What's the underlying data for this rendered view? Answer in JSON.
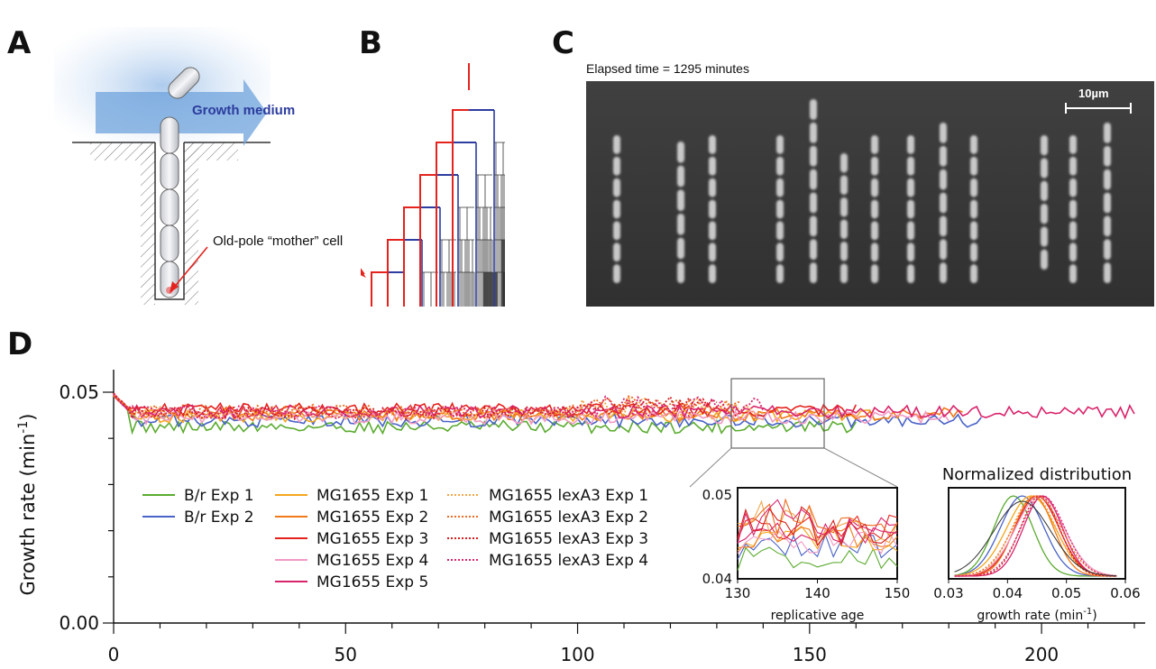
{
  "panels": {
    "a": "A",
    "b": "B",
    "c": "C",
    "d": "D"
  },
  "panel_a": {
    "growth_label": "Growth medium",
    "mother_label": "Old-pole “mother” cell"
  },
  "panel_c": {
    "elapsed": "Elapsed time = 1295 minutes",
    "scale": "10µm"
  },
  "colors": {
    "br1": "#5aab2e",
    "br2": "#4a63c8",
    "mg1": "#f4a71d",
    "mg2": "#f07a1a",
    "mg3": "#e4231e",
    "mg4": "#f29ac4",
    "mg5": "#d9236b",
    "lex1": "#f3a64a",
    "lex2": "#ec6b20",
    "lex3": "#d51e1e",
    "lex4": "#d8276f"
  },
  "chart_data": [
    {
      "type": "line",
      "xlim": [
        0,
        220
      ],
      "ylim": [
        0,
        0.05
      ],
      "ylabel": "Growth rate (min",
      "ylabel_sup": "-1",
      "ylabel_close": ")",
      "xticks": [
        "0",
        "50",
        "100",
        "150",
        "200"
      ],
      "yticks": [
        "0.00",
        "0.05"
      ],
      "series": [
        {
          "name": "B/r Exp 1",
          "color": "#5aab2e",
          "style": "solid",
          "base": 0.0425,
          "end": 160
        },
        {
          "name": "B/r Exp 2",
          "color": "#4a63c8",
          "style": "solid",
          "base": 0.0438,
          "end": 187
        },
        {
          "name": "MG1655 Exp 1",
          "color": "#f4a71d",
          "style": "solid",
          "base": 0.0448,
          "end": 165
        },
        {
          "name": "MG1655 Exp 2",
          "color": "#f07a1a",
          "style": "solid",
          "base": 0.0452,
          "end": 183
        },
        {
          "name": "MG1655 Exp 3",
          "color": "#e4231e",
          "style": "solid",
          "base": 0.0462,
          "end": 160
        },
        {
          "name": "MG1655 Exp 4",
          "color": "#f29ac4",
          "style": "solid",
          "base": 0.0445,
          "end": 180
        },
        {
          "name": "MG1655 Exp 5",
          "color": "#d9236b",
          "style": "solid",
          "base": 0.0458,
          "end": 220
        },
        {
          "name": "MG1655 lexA3 Exp 1",
          "color": "#f3a64a",
          "style": "dotted",
          "base": 0.0455,
          "end": 140
        },
        {
          "name": "MG1655 lexA3 Exp 2",
          "color": "#ec6b20",
          "style": "dotted",
          "base": 0.046,
          "end": 135
        },
        {
          "name": "MG1655 lexA3 Exp 3",
          "color": "#d51e1e",
          "style": "dotted",
          "base": 0.0455,
          "end": 130
        },
        {
          "name": "MG1655 lexA3 Exp 4",
          "color": "#d8276f",
          "style": "dotted",
          "base": 0.0457,
          "end": 140
        }
      ]
    },
    {
      "type": "line",
      "xlim": [
        130,
        150
      ],
      "ylim": [
        0.04,
        0.05
      ],
      "xlabel": "replicative age",
      "xticks": [
        "130",
        "140",
        "150"
      ],
      "yticks": [
        "0.04",
        "0.05"
      ]
    },
    {
      "type": "line",
      "title": "Normalized distribution",
      "xlim": [
        0.03,
        0.06
      ],
      "xlabel": "growth rate (min",
      "xlabel_sup": "-1",
      "xlabel_close": ")",
      "xticks": [
        "0.03",
        "0.04",
        "0.05",
        "0.06"
      ],
      "peaks": [
        0.041,
        0.0425,
        0.044,
        0.0445,
        0.045,
        0.0455,
        0.046,
        0.0445,
        0.045,
        0.0455,
        0.046
      ]
    }
  ]
}
